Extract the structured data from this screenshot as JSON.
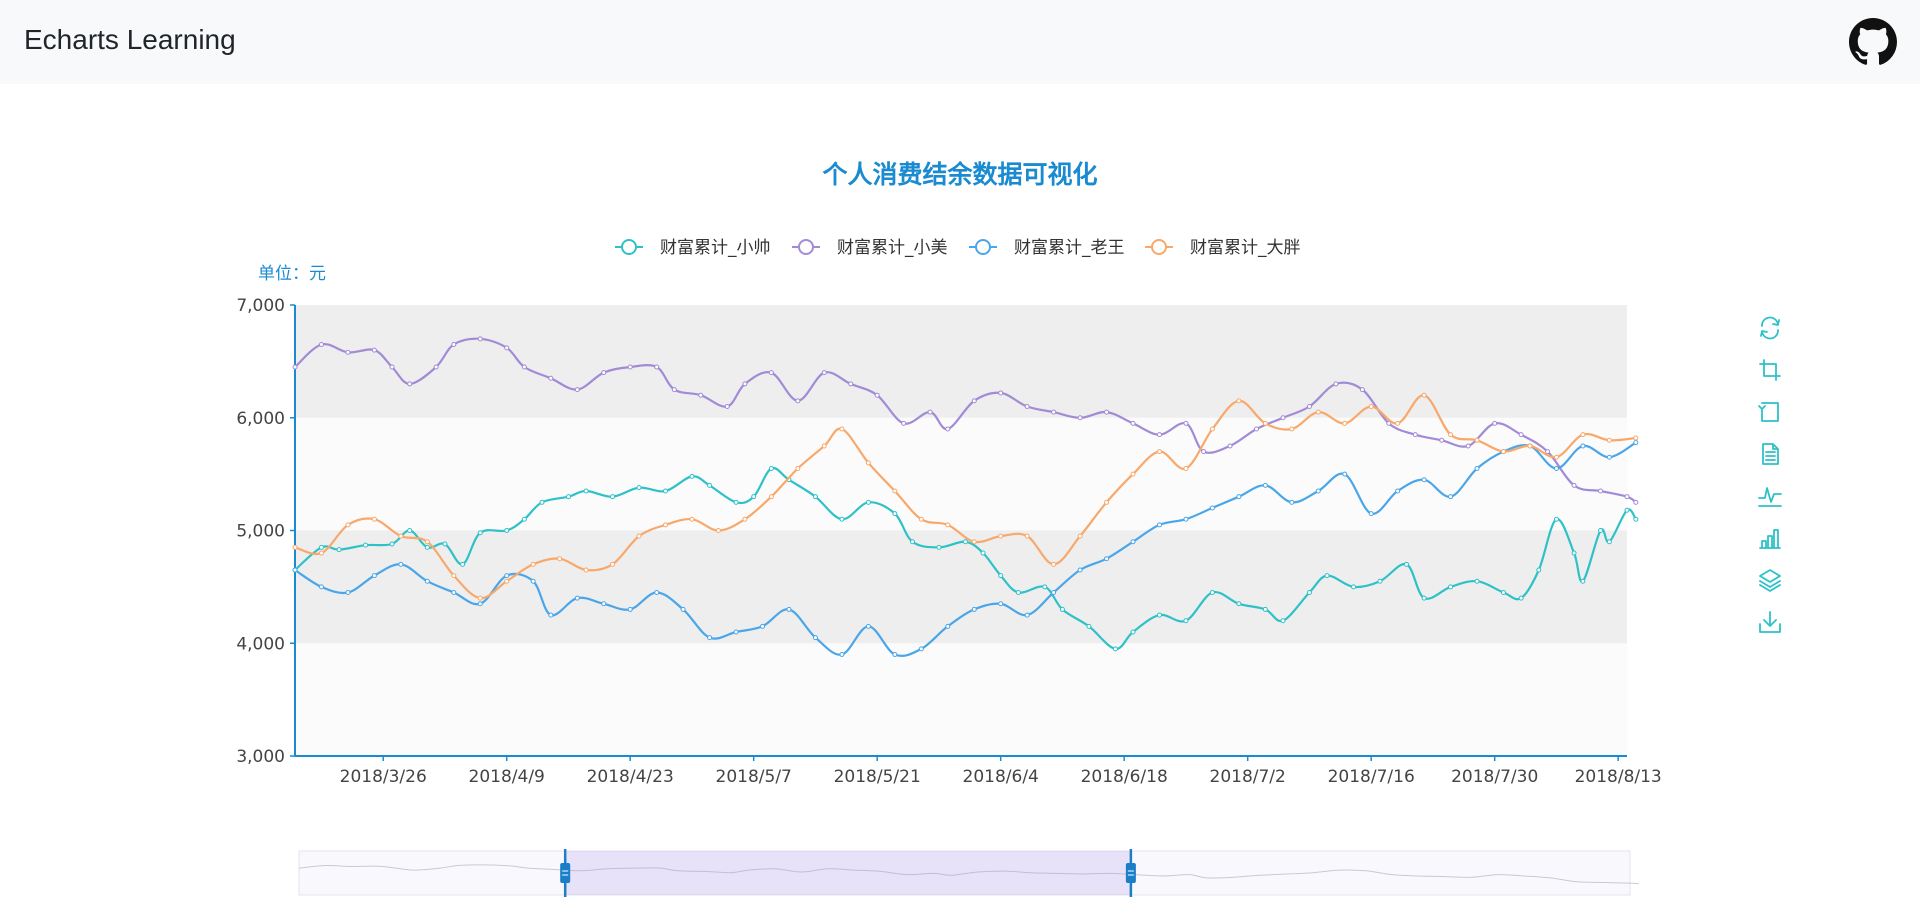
{
  "header": {
    "title": "Echarts Learning",
    "github_icon": "github-icon"
  },
  "colors": {
    "title": "#1a8bd0",
    "axis": "#1a8bd0",
    "toolbox": "#2ec1c7",
    "band_dark": "#eeeeee",
    "band_light": "#fbfbfb"
  },
  "toolbox": {
    "icons": [
      "refresh-icon",
      "zoom-icon",
      "zoom-reset-icon",
      "data-view-icon",
      "line-chart-icon",
      "bar-chart-icon",
      "stack-icon",
      "download-icon"
    ]
  },
  "datazoom": {
    "start": 0.2,
    "end": 0.625
  },
  "chart_data": {
    "type": "line",
    "title": "个人消费结余数据可视化",
    "yunit": "单位：元",
    "ylim": [
      3000,
      7000
    ],
    "yticks": [
      "3,000",
      "4,000",
      "5,000",
      "6,000",
      "7,000"
    ],
    "xlim": [
      "2018-03-16",
      "2018-08-14"
    ],
    "xticks": [
      {
        "label": "2018/3/26",
        "date": "2018-03-26"
      },
      {
        "label": "2018/4/9",
        "date": "2018-04-09"
      },
      {
        "label": "2018/4/23",
        "date": "2018-04-23"
      },
      {
        "label": "2018/5/7",
        "date": "2018-05-07"
      },
      {
        "label": "2018/5/21",
        "date": "2018-05-21"
      },
      {
        "label": "2018/6/4",
        "date": "2018-06-04"
      },
      {
        "label": "2018/6/18",
        "date": "2018-06-18"
      },
      {
        "label": "2018/7/2",
        "date": "2018-07-02"
      },
      {
        "label": "2018/7/16",
        "date": "2018-07-16"
      },
      {
        "label": "2018/7/30",
        "date": "2018-07-30"
      },
      {
        "label": "2018/8/13",
        "date": "2018-08-13"
      }
    ],
    "legend_placement": "top-center",
    "series": [
      {
        "name": "财富累计_小帅",
        "color": "#2ec1c7",
        "points": [
          [
            "2018-03-16",
            4650
          ],
          [
            "2018-03-19",
            4850
          ],
          [
            "2018-03-21",
            4830
          ],
          [
            "2018-03-24",
            4870
          ],
          [
            "2018-03-27",
            4880
          ],
          [
            "2018-03-29",
            5000
          ],
          [
            "2018-03-31",
            4850
          ],
          [
            "2018-04-02",
            4880
          ],
          [
            "2018-04-04",
            4700
          ],
          [
            "2018-04-06",
            4980
          ],
          [
            "2018-04-09",
            5000
          ],
          [
            "2018-04-11",
            5100
          ],
          [
            "2018-04-13",
            5250
          ],
          [
            "2018-04-16",
            5300
          ],
          [
            "2018-04-18",
            5350
          ],
          [
            "2018-04-21",
            5300
          ],
          [
            "2018-04-24",
            5380
          ],
          [
            "2018-04-27",
            5350
          ],
          [
            "2018-04-30",
            5480
          ],
          [
            "2018-05-02",
            5400
          ],
          [
            "2018-05-05",
            5250
          ],
          [
            "2018-05-07",
            5300
          ],
          [
            "2018-05-09",
            5550
          ],
          [
            "2018-05-11",
            5450
          ],
          [
            "2018-05-14",
            5300
          ],
          [
            "2018-05-17",
            5100
          ],
          [
            "2018-05-20",
            5250
          ],
          [
            "2018-05-23",
            5150
          ],
          [
            "2018-05-25",
            4900
          ],
          [
            "2018-05-28",
            4850
          ],
          [
            "2018-05-31",
            4900
          ],
          [
            "2018-06-02",
            4800
          ],
          [
            "2018-06-04",
            4600
          ],
          [
            "2018-06-06",
            4450
          ],
          [
            "2018-06-09",
            4500
          ],
          [
            "2018-06-11",
            4300
          ],
          [
            "2018-06-14",
            4150
          ],
          [
            "2018-06-17",
            3950
          ],
          [
            "2018-06-19",
            4100
          ],
          [
            "2018-06-22",
            4250
          ],
          [
            "2018-06-25",
            4200
          ],
          [
            "2018-06-28",
            4450
          ],
          [
            "2018-07-01",
            4350
          ],
          [
            "2018-07-04",
            4300
          ],
          [
            "2018-07-06",
            4200
          ],
          [
            "2018-07-09",
            4450
          ],
          [
            "2018-07-11",
            4600
          ],
          [
            "2018-07-14",
            4500
          ],
          [
            "2018-07-17",
            4550
          ],
          [
            "2018-07-20",
            4700
          ],
          [
            "2018-07-22",
            4400
          ],
          [
            "2018-07-25",
            4500
          ],
          [
            "2018-07-28",
            4550
          ],
          [
            "2018-07-31",
            4450
          ],
          [
            "2018-08-02",
            4400
          ],
          [
            "2018-08-04",
            4650
          ],
          [
            "2018-08-06",
            5100
          ],
          [
            "2018-08-08",
            4800
          ],
          [
            "2018-08-09",
            4550
          ],
          [
            "2018-08-11",
            5000
          ],
          [
            "2018-08-12",
            4900
          ],
          [
            "2018-08-14",
            5180
          ],
          [
            "2018-08-15",
            5100
          ]
        ]
      },
      {
        "name": "财富累计_小美",
        "color": "#a28bd6",
        "points": [
          [
            "2018-03-16",
            6450
          ],
          [
            "2018-03-19",
            6650
          ],
          [
            "2018-03-22",
            6580
          ],
          [
            "2018-03-25",
            6600
          ],
          [
            "2018-03-27",
            6450
          ],
          [
            "2018-03-29",
            6300
          ],
          [
            "2018-04-01",
            6450
          ],
          [
            "2018-04-03",
            6650
          ],
          [
            "2018-04-06",
            6700
          ],
          [
            "2018-04-09",
            6620
          ],
          [
            "2018-04-11",
            6450
          ],
          [
            "2018-04-14",
            6350
          ],
          [
            "2018-04-17",
            6250
          ],
          [
            "2018-04-20",
            6400
          ],
          [
            "2018-04-23",
            6450
          ],
          [
            "2018-04-26",
            6450
          ],
          [
            "2018-04-28",
            6250
          ],
          [
            "2018-05-01",
            6200
          ],
          [
            "2018-05-04",
            6100
          ],
          [
            "2018-05-06",
            6300
          ],
          [
            "2018-05-09",
            6400
          ],
          [
            "2018-05-12",
            6150
          ],
          [
            "2018-05-15",
            6400
          ],
          [
            "2018-05-18",
            6300
          ],
          [
            "2018-05-21",
            6200
          ],
          [
            "2018-05-24",
            5950
          ],
          [
            "2018-05-27",
            6050
          ],
          [
            "2018-05-29",
            5900
          ],
          [
            "2018-06-01",
            6150
          ],
          [
            "2018-06-04",
            6220
          ],
          [
            "2018-06-07",
            6100
          ],
          [
            "2018-06-10",
            6050
          ],
          [
            "2018-06-13",
            6000
          ],
          [
            "2018-06-16",
            6050
          ],
          [
            "2018-06-19",
            5950
          ],
          [
            "2018-06-22",
            5850
          ],
          [
            "2018-06-25",
            5950
          ],
          [
            "2018-06-27",
            5700
          ],
          [
            "2018-06-30",
            5750
          ],
          [
            "2018-07-03",
            5900
          ],
          [
            "2018-07-06",
            6000
          ],
          [
            "2018-07-09",
            6100
          ],
          [
            "2018-07-12",
            6300
          ],
          [
            "2018-07-15",
            6250
          ],
          [
            "2018-07-18",
            5950
          ],
          [
            "2018-07-21",
            5850
          ],
          [
            "2018-07-24",
            5800
          ],
          [
            "2018-07-27",
            5750
          ],
          [
            "2018-07-30",
            5950
          ],
          [
            "2018-08-02",
            5850
          ],
          [
            "2018-08-05",
            5700
          ],
          [
            "2018-08-08",
            5400
          ],
          [
            "2018-08-11",
            5350
          ],
          [
            "2018-08-14",
            5300
          ],
          [
            "2018-08-15",
            5250
          ]
        ]
      },
      {
        "name": "财富累计_老王",
        "color": "#4aa6e8",
        "points": [
          [
            "2018-03-16",
            4650
          ],
          [
            "2018-03-19",
            4500
          ],
          [
            "2018-03-22",
            4450
          ],
          [
            "2018-03-25",
            4600
          ],
          [
            "2018-03-28",
            4700
          ],
          [
            "2018-03-31",
            4550
          ],
          [
            "2018-04-03",
            4450
          ],
          [
            "2018-04-06",
            4350
          ],
          [
            "2018-04-09",
            4600
          ],
          [
            "2018-04-12",
            4550
          ],
          [
            "2018-04-14",
            4250
          ],
          [
            "2018-04-17",
            4400
          ],
          [
            "2018-04-20",
            4350
          ],
          [
            "2018-04-23",
            4300
          ],
          [
            "2018-04-26",
            4450
          ],
          [
            "2018-04-29",
            4300
          ],
          [
            "2018-05-02",
            4050
          ],
          [
            "2018-05-05",
            4100
          ],
          [
            "2018-05-08",
            4150
          ],
          [
            "2018-05-11",
            4300
          ],
          [
            "2018-05-14",
            4050
          ],
          [
            "2018-05-17",
            3900
          ],
          [
            "2018-05-20",
            4150
          ],
          [
            "2018-05-23",
            3900
          ],
          [
            "2018-05-26",
            3950
          ],
          [
            "2018-05-29",
            4150
          ],
          [
            "2018-06-01",
            4300
          ],
          [
            "2018-06-04",
            4350
          ],
          [
            "2018-06-07",
            4250
          ],
          [
            "2018-06-10",
            4450
          ],
          [
            "2018-06-13",
            4650
          ],
          [
            "2018-06-16",
            4750
          ],
          [
            "2018-06-19",
            4900
          ],
          [
            "2018-06-22",
            5050
          ],
          [
            "2018-06-25",
            5100
          ],
          [
            "2018-06-28",
            5200
          ],
          [
            "2018-07-01",
            5300
          ],
          [
            "2018-07-04",
            5400
          ],
          [
            "2018-07-07",
            5250
          ],
          [
            "2018-07-10",
            5350
          ],
          [
            "2018-07-13",
            5500
          ],
          [
            "2018-07-16",
            5150
          ],
          [
            "2018-07-19",
            5350
          ],
          [
            "2018-07-22",
            5450
          ],
          [
            "2018-07-25",
            5300
          ],
          [
            "2018-07-28",
            5550
          ],
          [
            "2018-07-31",
            5700
          ],
          [
            "2018-08-03",
            5750
          ],
          [
            "2018-08-06",
            5550
          ],
          [
            "2018-08-09",
            5750
          ],
          [
            "2018-08-12",
            5650
          ],
          [
            "2018-08-15",
            5780
          ]
        ]
      },
      {
        "name": "财富累计_大胖",
        "color": "#f8a86a",
        "points": [
          [
            "2018-03-16",
            4850
          ],
          [
            "2018-03-19",
            4800
          ],
          [
            "2018-03-22",
            5050
          ],
          [
            "2018-03-25",
            5100
          ],
          [
            "2018-03-28",
            4950
          ],
          [
            "2018-03-31",
            4900
          ],
          [
            "2018-04-03",
            4600
          ],
          [
            "2018-04-06",
            4400
          ],
          [
            "2018-04-09",
            4550
          ],
          [
            "2018-04-12",
            4700
          ],
          [
            "2018-04-15",
            4750
          ],
          [
            "2018-04-18",
            4650
          ],
          [
            "2018-04-21",
            4700
          ],
          [
            "2018-04-24",
            4950
          ],
          [
            "2018-04-27",
            5050
          ],
          [
            "2018-04-30",
            5100
          ],
          [
            "2018-05-03",
            5000
          ],
          [
            "2018-05-06",
            5100
          ],
          [
            "2018-05-09",
            5300
          ],
          [
            "2018-05-12",
            5550
          ],
          [
            "2018-05-15",
            5750
          ],
          [
            "2018-05-17",
            5900
          ],
          [
            "2018-05-20",
            5600
          ],
          [
            "2018-05-23",
            5350
          ],
          [
            "2018-05-26",
            5100
          ],
          [
            "2018-05-29",
            5050
          ],
          [
            "2018-06-01",
            4900
          ],
          [
            "2018-06-04",
            4950
          ],
          [
            "2018-06-07",
            4950
          ],
          [
            "2018-06-10",
            4700
          ],
          [
            "2018-06-13",
            4950
          ],
          [
            "2018-06-16",
            5250
          ],
          [
            "2018-06-19",
            5500
          ],
          [
            "2018-06-22",
            5700
          ],
          [
            "2018-06-25",
            5550
          ],
          [
            "2018-06-28",
            5900
          ],
          [
            "2018-07-01",
            6150
          ],
          [
            "2018-07-04",
            5950
          ],
          [
            "2018-07-07",
            5900
          ],
          [
            "2018-07-10",
            6050
          ],
          [
            "2018-07-13",
            5950
          ],
          [
            "2018-07-16",
            6100
          ],
          [
            "2018-07-19",
            5950
          ],
          [
            "2018-07-22",
            6200
          ],
          [
            "2018-07-25",
            5850
          ],
          [
            "2018-07-28",
            5800
          ],
          [
            "2018-07-31",
            5700
          ],
          [
            "2018-08-03",
            5750
          ],
          [
            "2018-08-06",
            5650
          ],
          [
            "2018-08-09",
            5850
          ],
          [
            "2018-08-12",
            5800
          ],
          [
            "2018-08-15",
            5820
          ]
        ]
      }
    ]
  }
}
